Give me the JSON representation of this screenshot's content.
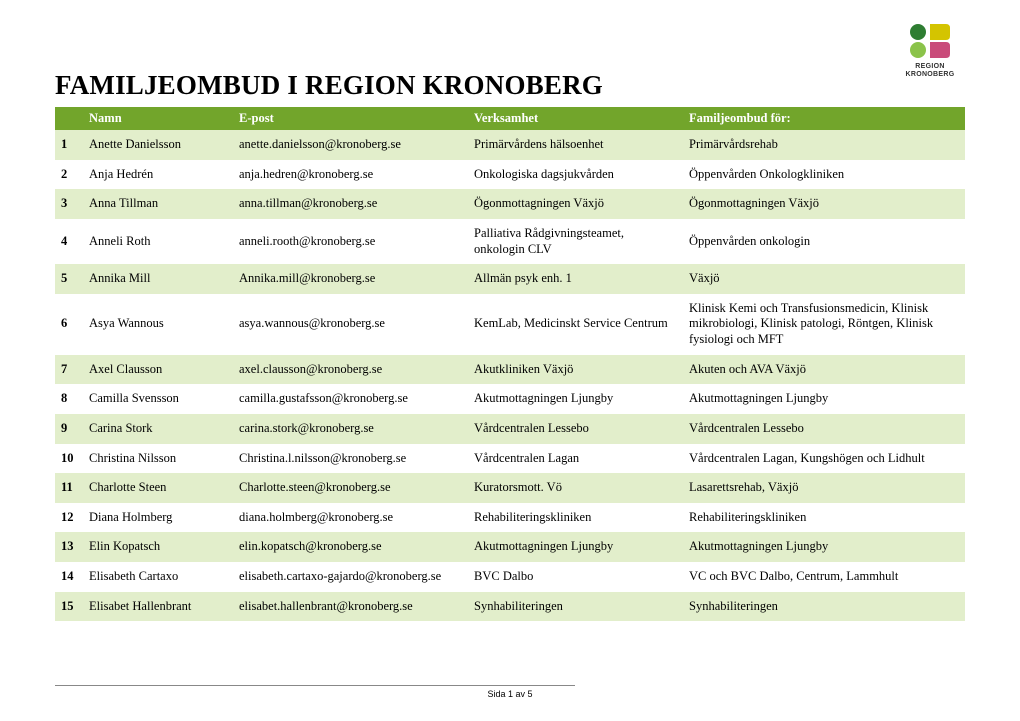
{
  "logo": {
    "line1": "REGION",
    "line2": "KRONOBERG",
    "colors": {
      "green_dark": "#2e7d32",
      "green_light": "#8bc34a",
      "yellow": "#d4c400",
      "pink": "#c94b7a"
    }
  },
  "title": "FAMILJEOMBUD I REGION KRONOBERG",
  "table": {
    "header_bg": "#72a52b",
    "header_fg": "#ffffff",
    "row_odd_bg": "#e2eecb",
    "row_even_bg": "#ffffff",
    "columns": [
      "",
      "Namn",
      "E-post",
      "Verksamhet",
      "Familjeombud för:"
    ],
    "rows": [
      {
        "n": "1",
        "namn": "Anette Danielsson",
        "epost": "anette.danielsson@kronoberg.se",
        "verk": "Primärvårdens hälsoenhet",
        "for": "Primärvårdsrehab"
      },
      {
        "n": "2",
        "namn": "Anja Hedrén",
        "epost": "anja.hedren@kronoberg.se",
        "verk": "Onkologiska dagsjukvården",
        "for": "Öppenvården Onkologkliniken"
      },
      {
        "n": "3",
        "namn": "Anna Tillman",
        "epost": "anna.tillman@kronoberg.se",
        "verk": "Ögonmottagningen Växjö",
        "for": "Ögonmottagningen Växjö"
      },
      {
        "n": "4",
        "namn": "Anneli Roth",
        "epost": "anneli.rooth@kronoberg.se",
        "verk": "Palliativa Rådgivningsteamet, onkologin CLV",
        "for": "Öppenvården onkologin"
      },
      {
        "n": "5",
        "namn": "Annika Mill",
        "epost": "Annika.mill@kronoberg.se",
        "verk": "Allmän psyk enh. 1",
        "for": "Växjö"
      },
      {
        "n": "6",
        "namn": "Asya Wannous",
        "epost": "asya.wannous@kronoberg.se",
        "verk": "KemLab, Medicinskt Service Centrum",
        "for": "Klinisk Kemi och Transfusionsmedicin, Klinisk mikrobiologi, Klinisk patologi, Röntgen, Klinisk fysiologi och MFT"
      },
      {
        "n": "7",
        "namn": "Axel Clausson",
        "epost": "axel.clausson@kronoberg.se",
        "verk": "Akutkliniken Växjö",
        "for": "Akuten och AVA Växjö"
      },
      {
        "n": "8",
        "namn": "Camilla Svensson",
        "epost": "camilla.gustafsson@kronoberg.se",
        "verk": "Akutmottagningen Ljungby",
        "for": "Akutmottagningen Ljungby"
      },
      {
        "n": "9",
        "namn": "Carina Stork",
        "epost": "carina.stork@kronoberg.se",
        "verk": "Vårdcentralen Lessebo",
        "for": "Vårdcentralen Lessebo"
      },
      {
        "n": "10",
        "namn": "Christina Nilsson",
        "epost": "Christina.l.nilsson@kronoberg.se",
        "verk": "Vårdcentralen Lagan",
        "for": "Vårdcentralen Lagan, Kungshögen och Lidhult"
      },
      {
        "n": "11",
        "namn": "Charlotte Steen",
        "epost": "Charlotte.steen@kronoberg.se",
        "verk": "Kuratorsmott. Vö",
        "for": "Lasarettsrehab, Växjö"
      },
      {
        "n": "12",
        "namn": "Diana Holmberg",
        "epost": "diana.holmberg@kronoberg.se",
        "verk": "Rehabiliteringskliniken",
        "for": "Rehabiliteringskliniken"
      },
      {
        "n": "13",
        "namn": "Elin Kopatsch",
        "epost": "elin.kopatsch@kronoberg.se",
        "verk": "Akutmottagningen Ljungby",
        "for": "Akutmottagningen Ljungby"
      },
      {
        "n": "14",
        "namn": "Elisabeth Cartaxo",
        "epost": "elisabeth.cartaxo-gajardo@kronoberg.se",
        "verk": "BVC Dalbo",
        "for": "VC och BVC Dalbo, Centrum, Lammhult"
      },
      {
        "n": "15",
        "namn": "Elisabet Hallenbrant",
        "epost": "elisabet.hallenbrant@kronoberg.se",
        "verk": "Synhabiliteringen",
        "for": "Synhabiliteringen"
      }
    ]
  },
  "footer": "Sida 1 av 5"
}
